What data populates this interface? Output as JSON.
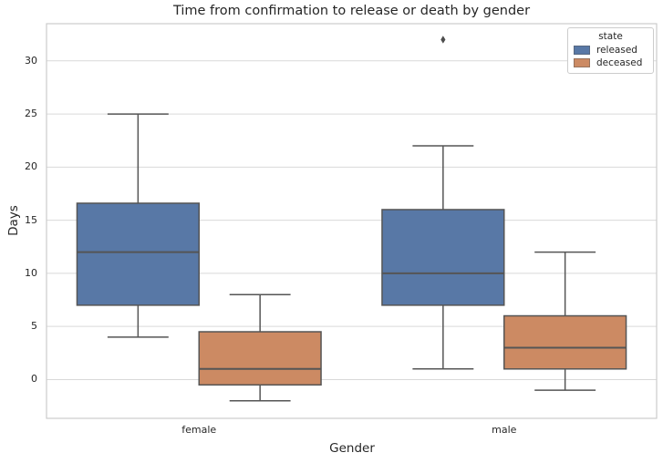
{
  "chart_data": {
    "type": "boxplot",
    "title": "Time from confirmation to release or death by gender",
    "xlabel": "Gender",
    "ylabel": "Days",
    "categories": [
      "female",
      "male"
    ],
    "yticks": [
      0,
      5,
      10,
      15,
      20,
      25,
      30
    ],
    "ylim": [
      -3.65,
      33.5
    ],
    "grid": true,
    "legend": {
      "title": "state",
      "position": "upper right",
      "entries": [
        {
          "label": "released",
          "color": "#5878a6"
        },
        {
          "label": "deceased",
          "color": "#cc8a63"
        }
      ]
    },
    "colors": {
      "released_fill": "#5878a6",
      "deceased_fill": "#cc8a63",
      "box_edge": "#555555",
      "median_line": "#555555",
      "outlier": "#4d4d4d",
      "grid": "#d9d9d9",
      "spine": "#cccccc",
      "text": "#262626"
    },
    "series": [
      {
        "name": "released",
        "color": "#5878a6",
        "boxes": [
          {
            "category": "female",
            "whisker_low": 4,
            "q1": 7,
            "median": 12,
            "q3": 16.6,
            "whisker_high": 25,
            "outliers": []
          },
          {
            "category": "male",
            "whisker_low": 1,
            "q1": 7,
            "median": 10,
            "q3": 16,
            "whisker_high": 22,
            "outliers": [
              32
            ]
          }
        ]
      },
      {
        "name": "deceased",
        "color": "#cc8a63",
        "boxes": [
          {
            "category": "female",
            "whisker_low": -2,
            "q1": -0.5,
            "median": 1,
            "q3": 4.5,
            "whisker_high": 8,
            "outliers": []
          },
          {
            "category": "male",
            "whisker_low": -1,
            "q1": 1,
            "median": 3,
            "q3": 6,
            "whisker_high": 12,
            "outliers": []
          }
        ]
      }
    ]
  }
}
